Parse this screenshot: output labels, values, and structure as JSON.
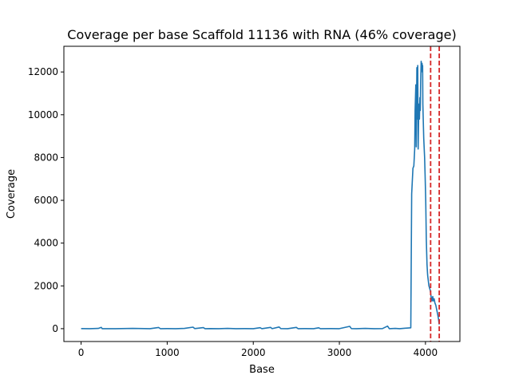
{
  "chart_data": {
    "type": "line",
    "title": "Coverage per base Scaffold 11136 with RNA (46% coverage)",
    "xlabel": "Base",
    "ylabel": "Coverage",
    "xlim": [
      -200,
      4400
    ],
    "ylim": [
      -600,
      13200
    ],
    "xticks": [
      0,
      1000,
      2000,
      3000,
      4000
    ],
    "yticks": [
      0,
      2000,
      4000,
      6000,
      8000,
      10000,
      12000
    ],
    "grid": false,
    "series": [
      {
        "color": "#1f77b4",
        "points": [
          [
            0,
            5
          ],
          [
            100,
            0
          ],
          [
            200,
            10
          ],
          [
            235,
            60
          ],
          [
            245,
            0
          ],
          [
            400,
            0
          ],
          [
            600,
            10
          ],
          [
            800,
            0
          ],
          [
            900,
            55
          ],
          [
            920,
            0
          ],
          [
            1000,
            5
          ],
          [
            1100,
            0
          ],
          [
            1200,
            10
          ],
          [
            1300,
            70
          ],
          [
            1320,
            5
          ],
          [
            1420,
            50
          ],
          [
            1440,
            0
          ],
          [
            1500,
            5
          ],
          [
            1600,
            0
          ],
          [
            1700,
            10
          ],
          [
            1800,
            0
          ],
          [
            1900,
            5
          ],
          [
            2000,
            0
          ],
          [
            2080,
            45
          ],
          [
            2100,
            0
          ],
          [
            2200,
            60
          ],
          [
            2220,
            0
          ],
          [
            2300,
            80
          ],
          [
            2320,
            5
          ],
          [
            2400,
            0
          ],
          [
            2500,
            60
          ],
          [
            2520,
            0
          ],
          [
            2600,
            5
          ],
          [
            2700,
            0
          ],
          [
            2760,
            40
          ],
          [
            2780,
            0
          ],
          [
            2900,
            5
          ],
          [
            3000,
            0
          ],
          [
            3120,
            110
          ],
          [
            3140,
            5
          ],
          [
            3200,
            0
          ],
          [
            3300,
            10
          ],
          [
            3400,
            0
          ],
          [
            3500,
            5
          ],
          [
            3560,
            120
          ],
          [
            3580,
            0
          ],
          [
            3650,
            10
          ],
          [
            3700,
            0
          ],
          [
            3830,
            40
          ],
          [
            3840,
            6300
          ],
          [
            3855,
            7500
          ],
          [
            3865,
            7600
          ],
          [
            3875,
            8400
          ],
          [
            3880,
            10200
          ],
          [
            3888,
            11400
          ],
          [
            3893,
            8500
          ],
          [
            3900,
            12200
          ],
          [
            3905,
            9800
          ],
          [
            3910,
            12300
          ],
          [
            3915,
            8400
          ],
          [
            3920,
            9600
          ],
          [
            3925,
            10500
          ],
          [
            3930,
            9800
          ],
          [
            3935,
            10800
          ],
          [
            3940,
            10200
          ],
          [
            3945,
            11600
          ],
          [
            3950,
            12500
          ],
          [
            3955,
            12100
          ],
          [
            3960,
            12400
          ],
          [
            3963,
            12000
          ],
          [
            3967,
            12300
          ],
          [
            3970,
            10500
          ],
          [
            3980,
            8900
          ],
          [
            3990,
            8000
          ],
          [
            3996,
            7200
          ],
          [
            4003,
            6000
          ],
          [
            4010,
            4200
          ],
          [
            4018,
            3000
          ],
          [
            4025,
            2500
          ],
          [
            4040,
            2000
          ],
          [
            4055,
            1800
          ],
          [
            4065,
            1500
          ],
          [
            4075,
            1300
          ],
          [
            4085,
            1500
          ],
          [
            4090,
            1300
          ],
          [
            4100,
            1400
          ],
          [
            4110,
            1200
          ],
          [
            4120,
            1100
          ],
          [
            4130,
            900
          ],
          [
            4140,
            700
          ],
          [
            4150,
            500
          ],
          [
            4160,
            200
          ]
        ]
      }
    ],
    "vlines": [
      {
        "x": 4060,
        "color": "#d62728",
        "style": "dashed"
      },
      {
        "x": 4160,
        "color": "#d62728",
        "style": "dashed"
      }
    ]
  }
}
